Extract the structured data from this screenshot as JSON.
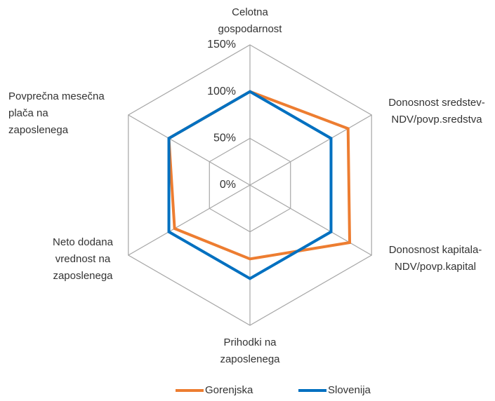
{
  "chart_data": {
    "type": "radar",
    "categories": [
      [
        "Celotna",
        "gospodarnost"
      ],
      [
        "Donosnost sredstev-",
        "NDV/povp.sredstva"
      ],
      [
        "Donosnost kapitala-",
        "NDV/povp.kapital"
      ],
      [
        "Prihodki na",
        "zaposlenega"
      ],
      [
        "Neto dodana",
        "vrednost na",
        "zaposlenega"
      ],
      [
        "Povprečna mesečna",
        "plača na",
        "zaposlenega"
      ]
    ],
    "series": [
      {
        "name": "Gorenjska",
        "color": "#ed7d31",
        "values": [
          100,
          121,
          123,
          79,
          93,
          100
        ]
      },
      {
        "name": "Slovenija",
        "color": "#0070c0",
        "values": [
          100,
          100,
          100,
          100,
          100,
          100
        ]
      }
    ],
    "rlim": [
      0,
      150
    ],
    "rticks": [
      {
        "value": 0,
        "label": "0%"
      },
      {
        "value": 50,
        "label": "50%"
      },
      {
        "value": 100,
        "label": "100%"
      },
      {
        "value": 150,
        "label": "150%"
      }
    ],
    "grid": true,
    "legend": "bottom"
  }
}
